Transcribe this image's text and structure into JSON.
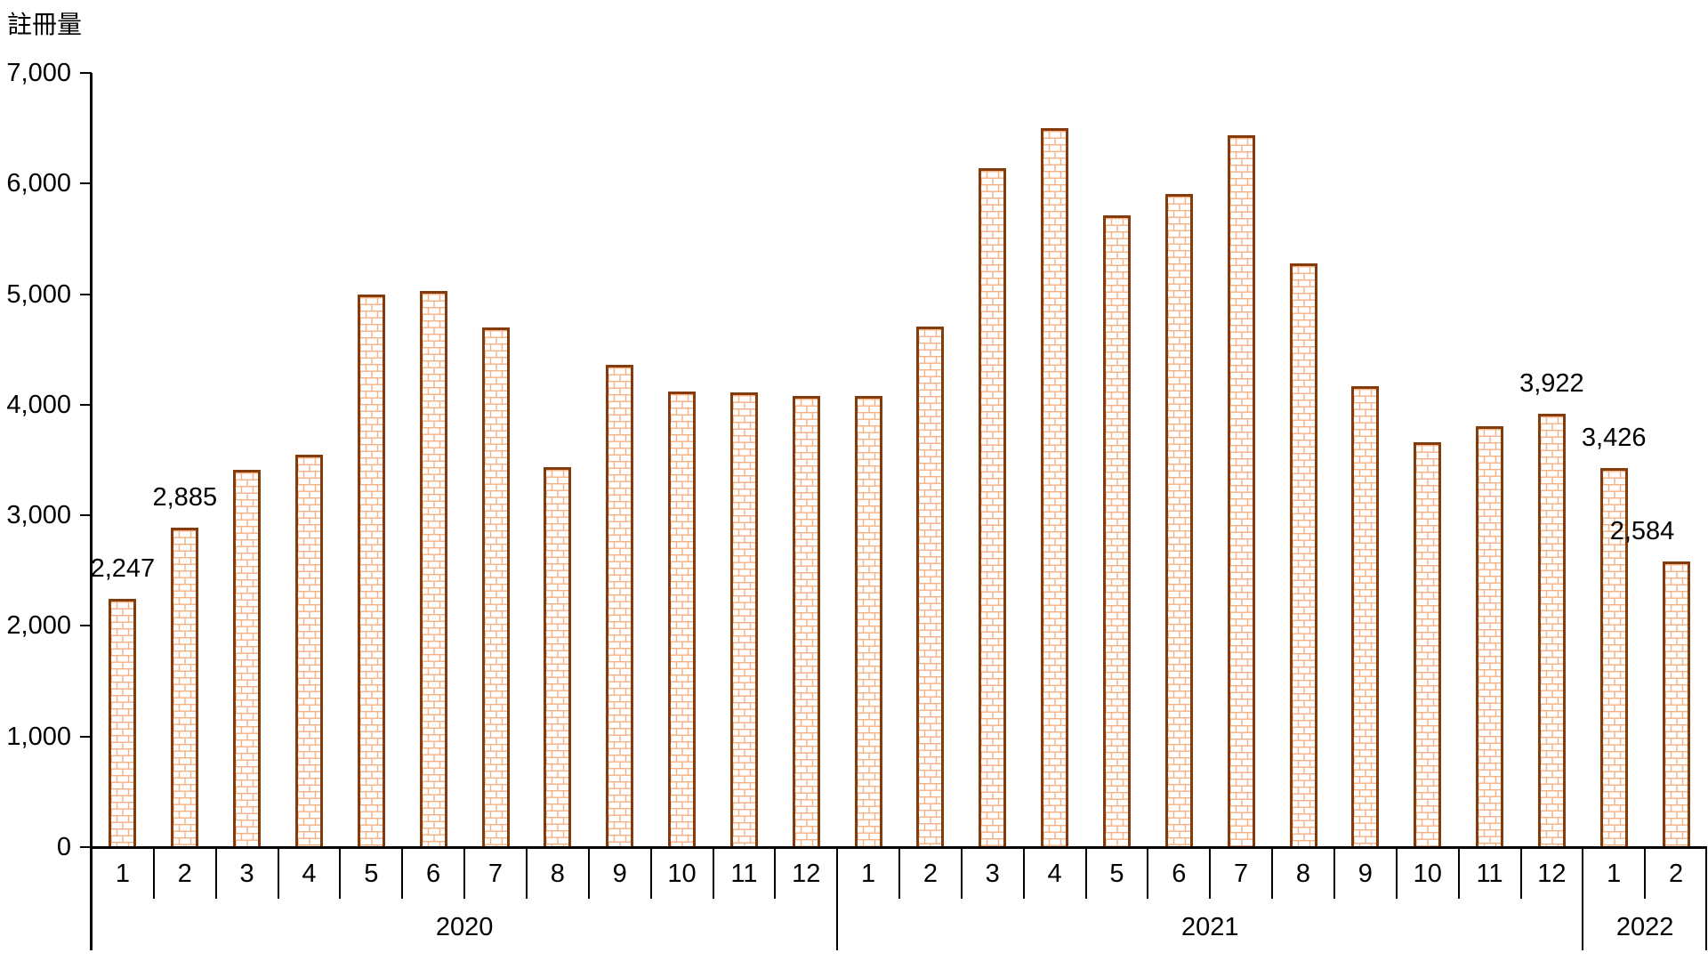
{
  "chart_data": {
    "type": "bar",
    "title": "註冊量",
    "ylabel": "註冊量",
    "xlabel": "",
    "ylim": [
      0,
      7000
    ],
    "ytick_step": 1000,
    "ytick_labels": [
      "0",
      "1,000",
      "2,000",
      "3,000",
      "4,000",
      "5,000",
      "6,000",
      "7,000"
    ],
    "grid": false,
    "legend_position": "none",
    "bar_style": {
      "pattern": "brick",
      "border_color": "#843C0C",
      "pattern_color": "#F4B183",
      "fill_background": "#FFFFFF"
    },
    "axis_color": "#000000",
    "text_color": "#000000",
    "groups": [
      {
        "year": "2020",
        "months": [
          "1",
          "2",
          "3",
          "4",
          "5",
          "6",
          "7",
          "8",
          "9",
          "10",
          "11",
          "12"
        ],
        "values": [
          2247,
          2885,
          3410,
          3550,
          5000,
          5030,
          4700,
          3440,
          4360,
          4120,
          4110,
          4080
        ]
      },
      {
        "year": "2021",
        "months": [
          "1",
          "2",
          "3",
          "4",
          "5",
          "6",
          "7",
          "8",
          "9",
          "10",
          "11",
          "12"
        ],
        "values": [
          4080,
          4710,
          6140,
          6500,
          5710,
          5910,
          6440,
          5280,
          4170,
          3660,
          3810,
          3922
        ]
      },
      {
        "year": "2022",
        "months": [
          "1",
          "2"
        ],
        "values": [
          3426,
          2584
        ]
      }
    ],
    "data_labels": [
      {
        "year": "2020",
        "month": "1",
        "text": "2,247"
      },
      {
        "year": "2020",
        "month": "2",
        "text": "2,885"
      },
      {
        "year": "2021",
        "month": "12",
        "text": "3,922"
      },
      {
        "year": "2022",
        "month": "1",
        "text": "3,426"
      },
      {
        "year": "2022",
        "month": "2",
        "text": "2,584"
      }
    ]
  }
}
